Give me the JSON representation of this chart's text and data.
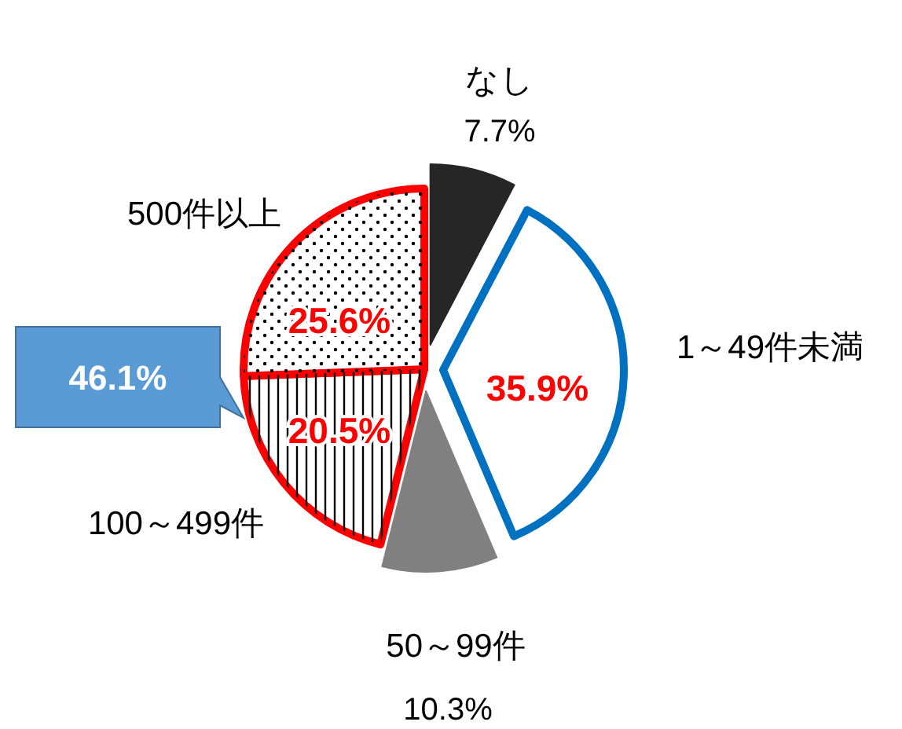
{
  "chart_data": {
    "type": "pie",
    "categories": [
      "なし",
      "1～49件未満",
      "50～99件",
      "100～499件",
      "500件以上"
    ],
    "values": [
      7.7,
      35.9,
      10.3,
      20.5,
      25.6
    ],
    "colors": [
      "#262626",
      "#ffffff",
      "#808080",
      "#ffffff",
      "#ffffff"
    ],
    "value_labels": [
      "7.7%",
      "35.9%",
      "10.3%",
      "20.5%",
      "25.6%"
    ],
    "annotations": [
      "46.1%"
    ],
    "legend": false
  }
}
